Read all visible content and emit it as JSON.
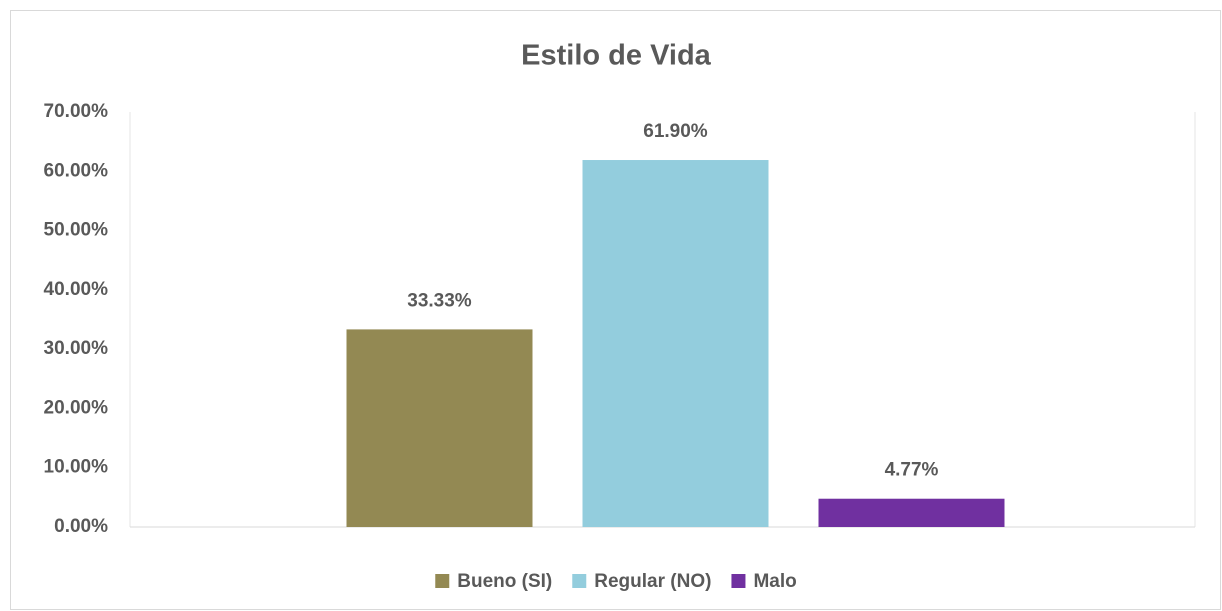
{
  "chart_data": {
    "type": "bar",
    "title": "Estilo de Vida",
    "categories": [
      null
    ],
    "series": [
      {
        "name": "Bueno (SI)",
        "color": "#938953",
        "values": [
          33.33
        ],
        "value_labels": [
          "33.33%"
        ]
      },
      {
        "name": "Regular (NO)",
        "color": "#93CDDD",
        "values": [
          61.9
        ],
        "value_labels": [
          "61.90%"
        ]
      },
      {
        "name": "Malo",
        "color": "#7030A0",
        "values": [
          4.77
        ],
        "value_labels": [
          "4.77%"
        ]
      }
    ],
    "ylim": [
      0,
      70
    ],
    "yticks": [
      {
        "value": 0,
        "label": "0.00%"
      },
      {
        "value": 10,
        "label": "10.00%"
      },
      {
        "value": 20,
        "label": "20.00%"
      },
      {
        "value": 30,
        "label": "30.00%"
      },
      {
        "value": 40,
        "label": "40.00%"
      },
      {
        "value": 50,
        "label": "50.00%"
      },
      {
        "value": 60,
        "label": "60.00%"
      },
      {
        "value": 70,
        "label": "70.00%"
      }
    ],
    "grid": false,
    "legend": "bottom"
  }
}
